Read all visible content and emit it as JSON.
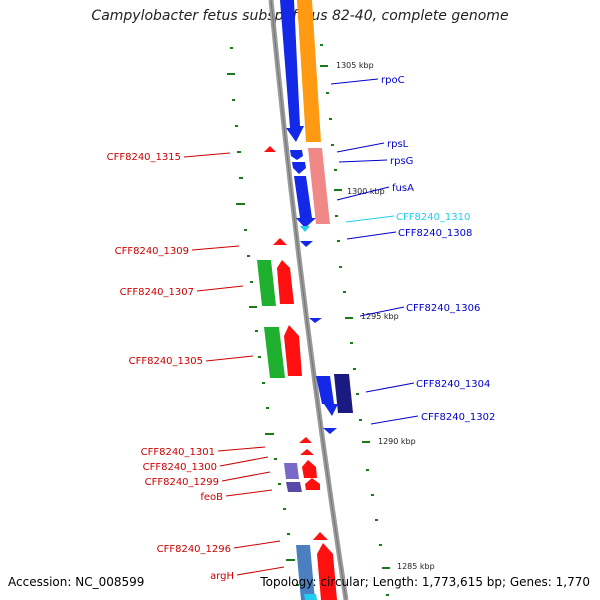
{
  "title": "Campylobacter fetus subsp. fetus 82-40, complete genome",
  "footer": {
    "accession": "Accession: NC_008599",
    "summary": "Topology: circular; Length: 1,773,615 bp; Genes: 1,770"
  },
  "colors": {
    "reverse_label": "#0000cc",
    "forward_label": "#cc0000",
    "highlight_label": "#22ccee",
    "backbone": "#888888",
    "tick": "#1a7a1a"
  },
  "scale_labels": [
    "1305 kbp",
    "1300 kbp",
    "1295 kbp",
    "1290 kbp",
    "1285 kbp"
  ],
  "genes": [
    {
      "name": "rpoC",
      "strand": "reverse",
      "color": "#0000cc"
    },
    {
      "name": "rpsL",
      "strand": "reverse",
      "color": "#0000cc"
    },
    {
      "name": "rpsG",
      "strand": "reverse",
      "color": "#0000cc"
    },
    {
      "name": "fusA",
      "strand": "reverse",
      "color": "#0000cc"
    },
    {
      "name": "CFF8240_1315",
      "strand": "forward",
      "color": "#cc0000"
    },
    {
      "name": "CFF8240_1310",
      "strand": "reverse",
      "color": "#22ccee"
    },
    {
      "name": "CFF8240_1308",
      "strand": "reverse",
      "color": "#0000cc"
    },
    {
      "name": "CFF8240_1309",
      "strand": "forward",
      "color": "#cc0000"
    },
    {
      "name": "CFF8240_1307",
      "strand": "forward",
      "color": "#cc0000"
    },
    {
      "name": "CFF8240_1306",
      "strand": "reverse",
      "color": "#0000cc"
    },
    {
      "name": "CFF8240_1305",
      "strand": "forward",
      "color": "#cc0000"
    },
    {
      "name": "CFF8240_1304",
      "strand": "reverse",
      "color": "#0000cc"
    },
    {
      "name": "CFF8240_1302",
      "strand": "reverse",
      "color": "#0000cc"
    },
    {
      "name": "CFF8240_1301",
      "strand": "forward",
      "color": "#cc0000"
    },
    {
      "name": "CFF8240_1300",
      "strand": "forward",
      "color": "#cc0000"
    },
    {
      "name": "CFF8240_1299",
      "strand": "forward",
      "color": "#cc0000"
    },
    {
      "name": "feoB",
      "strand": "forward",
      "color": "#cc0000"
    },
    {
      "name": "CFF8240_1296",
      "strand": "forward",
      "color": "#cc0000"
    },
    {
      "name": "argH",
      "strand": "forward",
      "color": "#cc0000"
    }
  ]
}
